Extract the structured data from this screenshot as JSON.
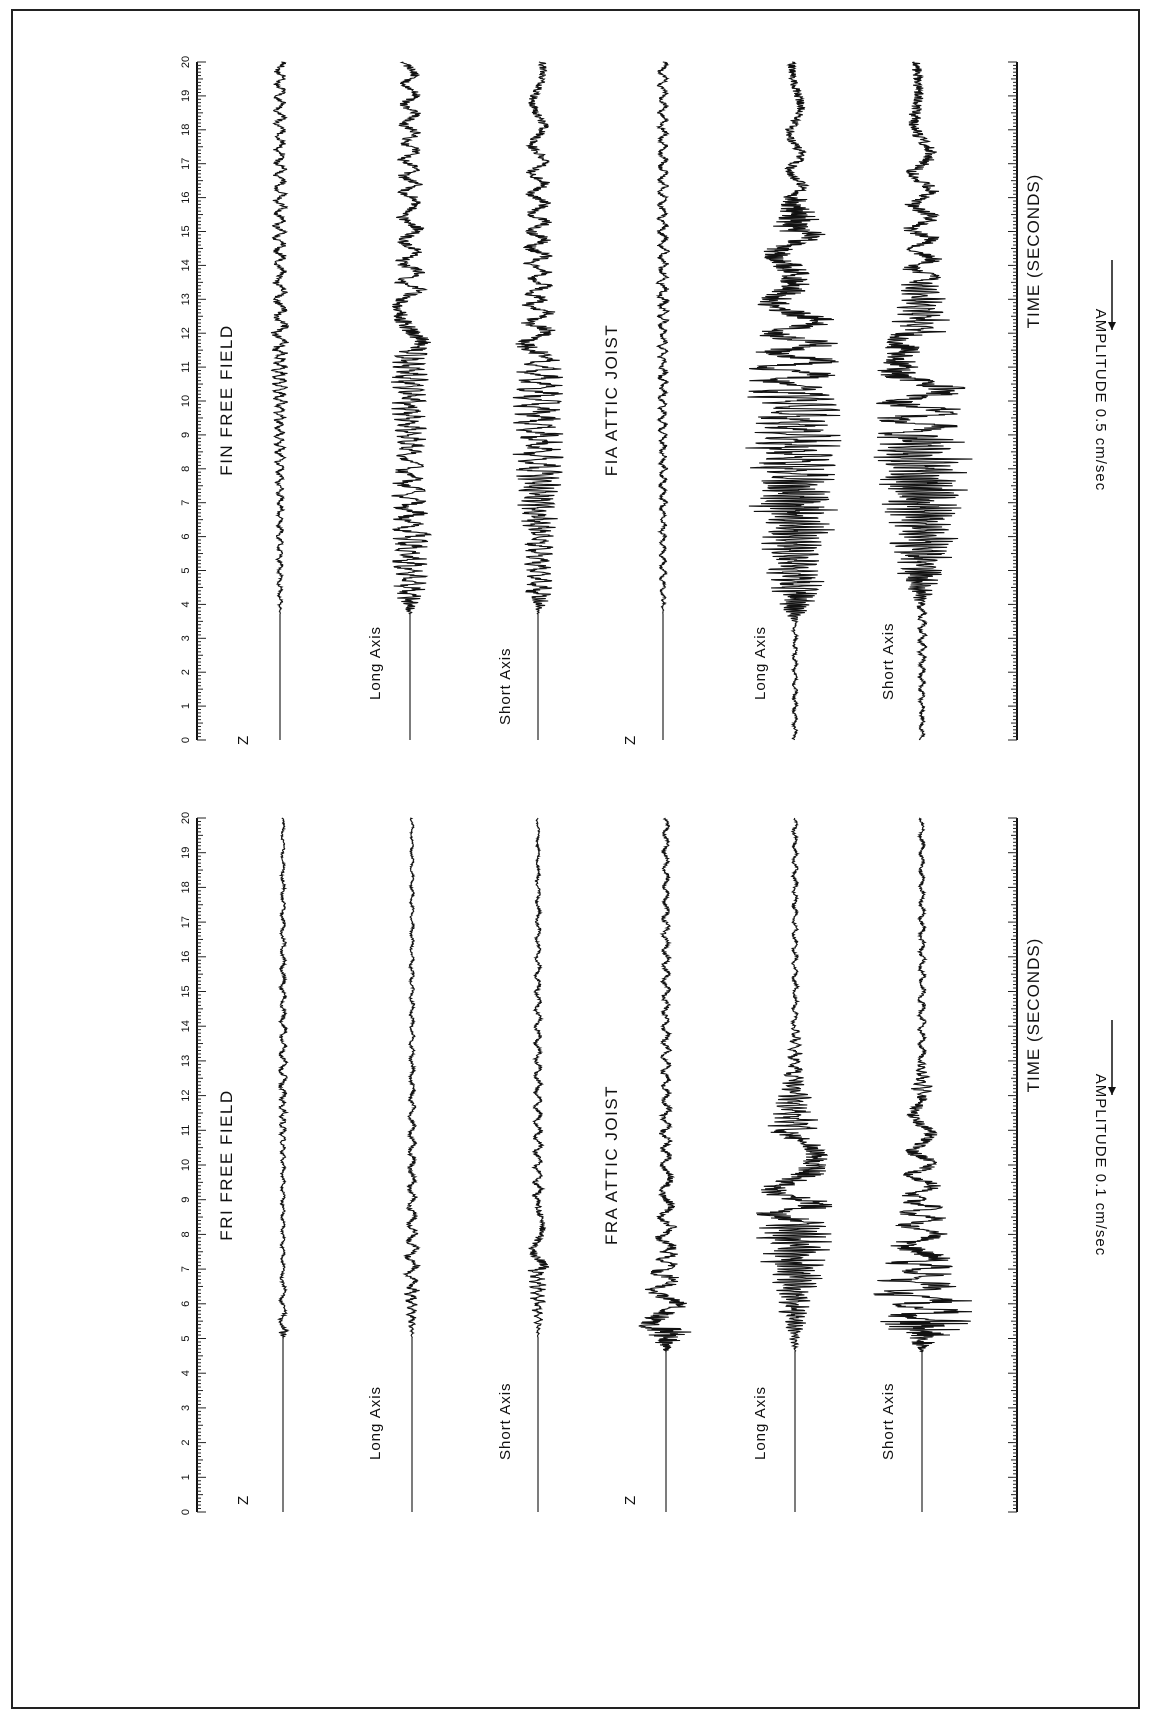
{
  "page_border": true,
  "chart_data": [
    {
      "type": "line",
      "title": "",
      "time_axis_label": "TIME (SECONDS)",
      "time_range": [
        0,
        20
      ],
      "time_ticks": [
        0,
        1,
        2,
        3,
        4,
        5,
        6,
        7,
        8,
        9,
        10,
        11,
        12,
        13,
        14,
        15,
        16,
        17,
        18,
        19,
        20
      ],
      "amplitude_scale_label": "AMPLITUDE 0.5 cm/sec",
      "stations": [
        {
          "name": "FIN FREE FIELD",
          "traces": [
            {
              "label": "Z",
              "onset": 3.7,
              "envelope": [
                [
                  0,
                  0
                ],
                [
                  3.7,
                  0
                ],
                [
                  4.0,
                  0.05
                ],
                [
                  6.0,
                  0.07
                ],
                [
                  8.5,
                  0.1
                ],
                [
                  11.5,
                  0.18
                ],
                [
                  14,
                  0.14
                ],
                [
                  20,
                  0.12
                ]
              ]
            },
            {
              "label": "Long Axis",
              "onset": 3.7,
              "envelope": [
                [
                  0,
                  0
                ],
                [
                  3.7,
                  0
                ],
                [
                  4.2,
                  0.3
                ],
                [
                  6.0,
                  0.38
                ],
                [
                  8.5,
                  0.3
                ],
                [
                  11.5,
                  0.4
                ],
                [
                  13,
                  0.32
                ],
                [
                  16,
                  0.24
                ],
                [
                  20,
                  0.18
                ]
              ]
            },
            {
              "label": "Short Axis",
              "onset": 3.7,
              "envelope": [
                [
                  0,
                  0
                ],
                [
                  3.7,
                  0
                ],
                [
                  4.2,
                  0.25
                ],
                [
                  6.0,
                  0.32
                ],
                [
                  7.8,
                  0.5
                ],
                [
                  11.2,
                  0.45
                ],
                [
                  13,
                  0.3
                ],
                [
                  17,
                  0.22
                ],
                [
                  20,
                  0.15
                ]
              ]
            }
          ]
        },
        {
          "name": "FIA ATTIC JOIST",
          "traces": [
            {
              "label": "Z",
              "onset": 3.7,
              "envelope": [
                [
                  0,
                  0
                ],
                [
                  3.7,
                  0
                ],
                [
                  4.2,
                  0.06
                ],
                [
                  7.0,
                  0.08
                ],
                [
                  10,
                  0.1
                ],
                [
                  13,
                  0.12
                ],
                [
                  20,
                  0.1
                ]
              ]
            },
            {
              "label": "Long Axis",
              "onset": 0.0,
              "envelope": [
                [
                  0,
                  0.05
                ],
                [
                  3.5,
                  0.05
                ],
                [
                  4.3,
                  0.5
                ],
                [
                  7.7,
                  0.95
                ],
                [
                  10.3,
                  0.9
                ],
                [
                  13,
                  0.7
                ],
                [
                  15,
                  0.55
                ],
                [
                  16,
                  0.25
                ],
                [
                  20,
                  0.15
                ]
              ]
            },
            {
              "label": "Short Axis",
              "onset": 0.0,
              "envelope": [
                [
                  0,
                  0.05
                ],
                [
                  4.0,
                  0.1
                ],
                [
                  5.0,
                  0.55
                ],
                [
                  7.8,
                  0.95
                ],
                [
                  9.0,
                  1.0
                ],
                [
                  12,
                  0.7
                ],
                [
                  13.5,
                  0.4
                ],
                [
                  20,
                  0.2
                ]
              ]
            }
          ]
        }
      ]
    },
    {
      "type": "line",
      "title": "",
      "time_axis_label": "TIME (SECONDS)",
      "time_range": [
        0,
        20
      ],
      "time_ticks": [
        0,
        1,
        2,
        3,
        4,
        5,
        6,
        7,
        8,
        9,
        10,
        11,
        12,
        13,
        14,
        15,
        16,
        17,
        18,
        19,
        20
      ],
      "amplitude_scale_label": "AMPLITUDE 0.1 cm/sec",
      "stations": [
        {
          "name": "FRI FREE FIELD",
          "traces": [
            {
              "label": "Z",
              "onset": 5.0,
              "envelope": [
                [
                  0,
                  0
                ],
                [
                  5.0,
                  0
                ],
                [
                  5.2,
                  0.12
                ],
                [
                  5.5,
                  0.08
                ],
                [
                  7,
                  0.04
                ],
                [
                  10,
                  0.04
                ],
                [
                  12,
                  0.08
                ],
                [
                  20,
                  0.03
                ]
              ]
            },
            {
              "label": "Long Axis",
              "onset": 5.0,
              "envelope": [
                [
                  0,
                  0
                ],
                [
                  5.0,
                  0
                ],
                [
                  5.5,
                  0.08
                ],
                [
                  6.5,
                  0.14
                ],
                [
                  7.5,
                  0.12
                ],
                [
                  10,
                  0.08
                ],
                [
                  13,
                  0.05
                ],
                [
                  20,
                  0.03
                ]
              ]
            },
            {
              "label": "Short Axis",
              "onset": 5.0,
              "envelope": [
                [
                  0,
                  0
                ],
                [
                  5.0,
                  0
                ],
                [
                  5.5,
                  0.08
                ],
                [
                  7.0,
                  0.2
                ],
                [
                  9,
                  0.1
                ],
                [
                  12,
                  0.08
                ],
                [
                  20,
                  0.03
                ]
              ]
            }
          ]
        },
        {
          "name": "FRA ATTIC JOIST",
          "traces": [
            {
              "label": "Z",
              "onset": 4.6,
              "envelope": [
                [
                  0,
                  0
                ],
                [
                  4.6,
                  0
                ],
                [
                  5.3,
                  0.55
                ],
                [
                  6.2,
                  0.4
                ],
                [
                  7.5,
                  0.2
                ],
                [
                  10,
                  0.12
                ],
                [
                  12,
                  0.1
                ],
                [
                  20,
                  0.06
                ]
              ]
            },
            {
              "label": "Long Axis",
              "onset": 4.6,
              "envelope": [
                [
                  0,
                  0
                ],
                [
                  4.6,
                  0
                ],
                [
                  5.5,
                  0.25
                ],
                [
                  7.3,
                  0.6
                ],
                [
                  8.3,
                  0.75
                ],
                [
                  11,
                  0.5
                ],
                [
                  12.5,
                  0.2
                ],
                [
                  14,
                  0.06
                ],
                [
                  20,
                  0.05
                ]
              ]
            },
            {
              "label": "Short Axis",
              "onset": 4.6,
              "envelope": [
                [
                  0,
                  0
                ],
                [
                  4.6,
                  0
                ],
                [
                  5.5,
                  0.95
                ],
                [
                  6.3,
                  0.85
                ],
                [
                  7.3,
                  0.6
                ],
                [
                  9,
                  0.35
                ],
                [
                  12,
                  0.22
                ],
                [
                  13,
                  0.08
                ],
                [
                  20,
                  0.05
                ]
              ]
            }
          ]
        }
      ]
    }
  ]
}
